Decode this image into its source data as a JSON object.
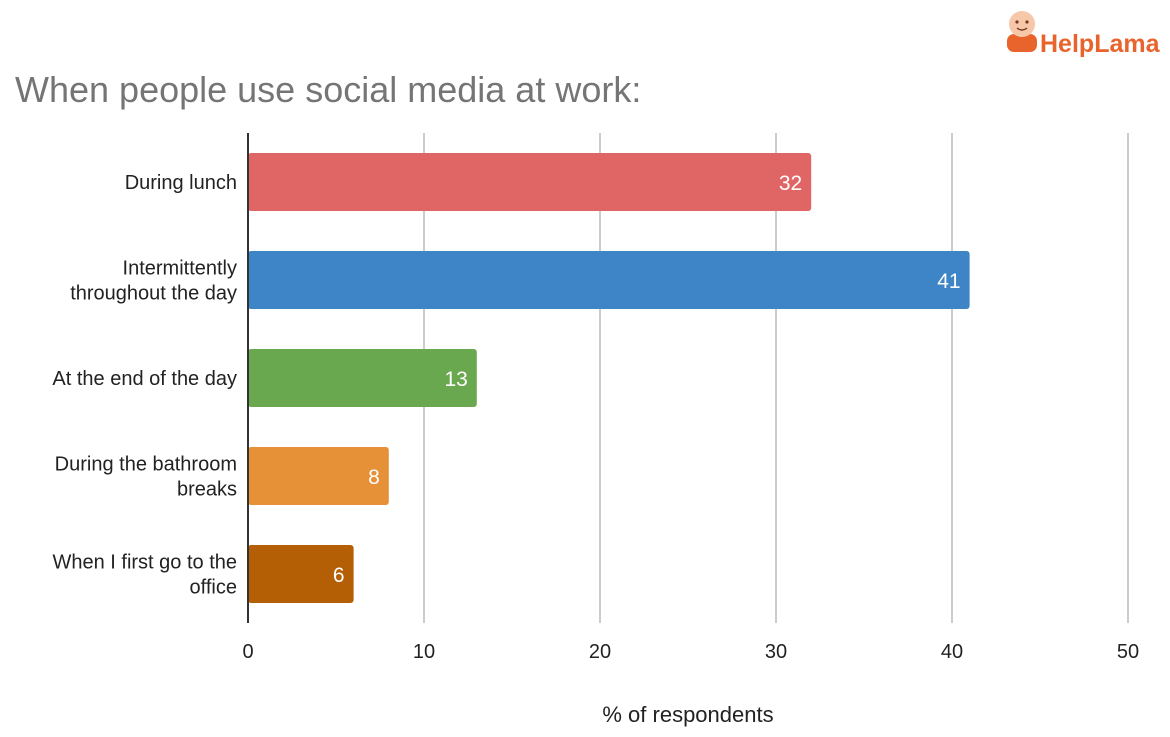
{
  "logo": {
    "part1": "Help",
    "part2": "Lama",
    "icon": "monk-mascot-icon",
    "color": "#e8642c"
  },
  "chart_data": {
    "type": "bar",
    "orientation": "horizontal",
    "title": "When people use social media at work:",
    "xlabel": "% of respondents",
    "ylabel": "",
    "categories": [
      [
        "During lunch"
      ],
      [
        "Intermittently",
        "throughout the day"
      ],
      [
        "At the end of the day"
      ],
      [
        "During the bathroom",
        "breaks"
      ],
      [
        "When I first go to the",
        "office"
      ]
    ],
    "values": [
      32,
      41,
      13,
      8,
      6
    ],
    "colors": [
      "#e06666",
      "#3d85c6",
      "#6aa84f",
      "#e69138",
      "#b45f06"
    ],
    "xlim": [
      0,
      50
    ],
    "xticks": [
      0,
      10,
      20,
      30,
      40,
      50
    ],
    "grid": true,
    "data_labels": true,
    "legend": "none"
  }
}
